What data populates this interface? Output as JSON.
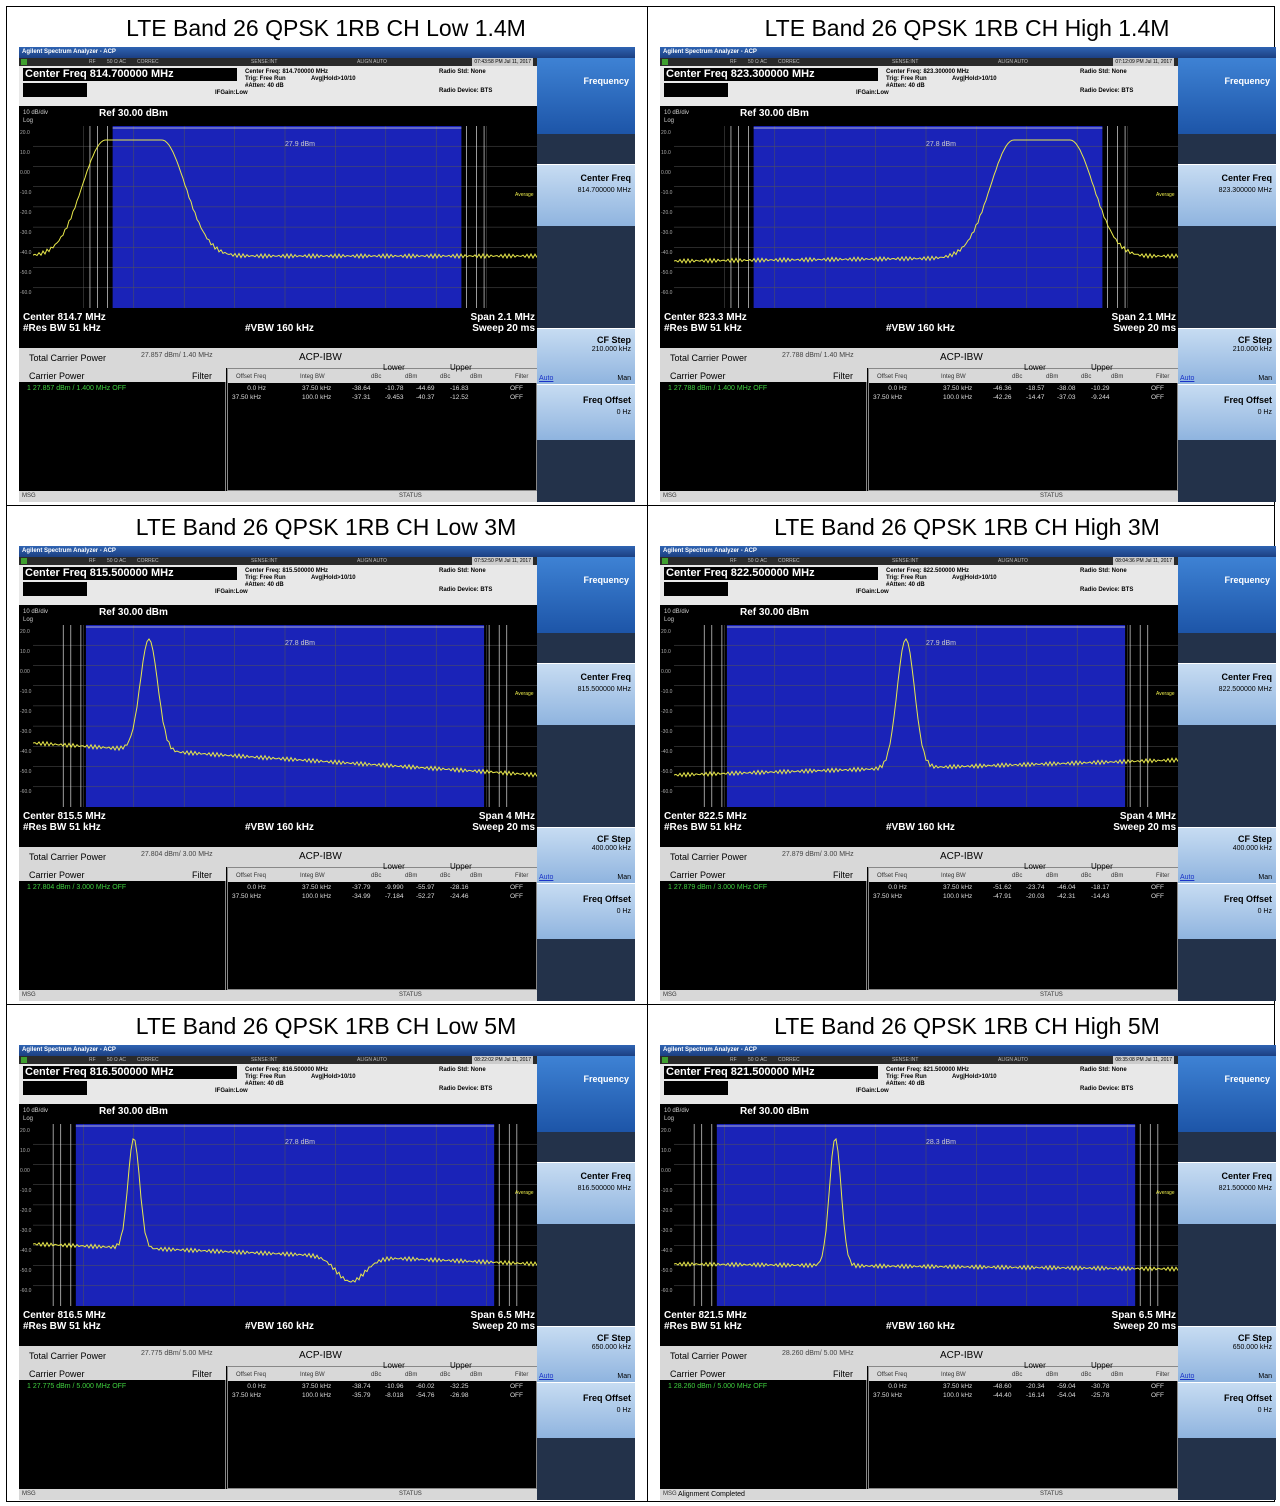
{
  "app_title": "Agilent Spectrum Analyzer - ACP",
  "status_items": [
    "RF",
    "50 Ω  AC",
    "CORREC",
    "SENSE:INT",
    "ALIGN AUTO"
  ],
  "ref_level": "Ref 30.00 dBm",
  "scale": "10 dB/div",
  "log_label": "Log",
  "y_ticks": [
    "20.0",
    "10.0",
    "0.00",
    "-10.0",
    "-20.0",
    "-30.0",
    "-40.0",
    "-50.0",
    "-60.0"
  ],
  "average_label": "Average",
  "header_labels": {
    "trig": "Trig: Free Run",
    "avg_hold": "Avg|Hold>10/10",
    "atten": "#Atten: 40 dB",
    "ifgain": "IFGain:Low",
    "radio_std": "Radio Std: None",
    "radio_device": "Radio Device: BTS"
  },
  "footer_labels": {
    "res_bw": "#Res BW  51 kHz",
    "vbw": "#VBW  160 kHz",
    "sweep": "Sweep  20 ms"
  },
  "results_labels": {
    "total_carrier_power": "Total Carrier Power",
    "mode": "ACP-IBW",
    "carrier_power": "Carrier Power",
    "filter": "Filter",
    "offset_freq": "Offset Freq",
    "integ_bw": "Integ BW",
    "lower": "Lower",
    "upper": "Upper",
    "dbc": "dBc",
    "dbm": "dBm",
    "filter_col": "Filter"
  },
  "bottom_bar": {
    "msg": "MSG",
    "status": "STATUS"
  },
  "softkeys": {
    "title": "Frequency",
    "center_freq": "Center Freq",
    "cf_step": "CF Step",
    "auto": "Auto",
    "man": "Man",
    "freq_offset": "Freq Offset",
    "freq_offset_value": "0 Hz"
  },
  "panels": [
    {
      "title": "LTE Band 26 QPSK 1RB CH Low 1.4M",
      "center_freq_box": "Center Freq 814.700000 MHz",
      "center_freq_header": "Center Freq: 814.700000 MHz",
      "timestamp": "07:43:58 PM Jul 11, 2017",
      "channel_power": "27.9 dBm",
      "center_label": "Center  814.7 MHz",
      "span_label": "Span 2.1 MHz",
      "total_carrier": "27.857 dBm/ 1.40 MHz",
      "carrier_row": "1    27.857 dBm /  1.400 MHz   OFF",
      "center_freq_softkey": "814.700000 MHz",
      "cf_step_value": "210.000 kHz",
      "offset_rows": [
        [
          "0.0 Hz",
          "37.50 kHz",
          "-38.64",
          "-10.78",
          "-44.69",
          "-16.83",
          "OFF"
        ],
        [
          "37.50 kHz",
          "100.0 kHz",
          "-37.31",
          "-9.453",
          "-40.37",
          "-12.52",
          "OFF"
        ]
      ],
      "alert": ""
    },
    {
      "title": "LTE Band 26 QPSK 1RB CH High 1.4M",
      "center_freq_box": "Center Freq 823.300000 MHz",
      "center_freq_header": "Center Freq: 823.300000 MHz",
      "timestamp": "07:12:09 PM Jul 11, 2017",
      "channel_power": "27.8 dBm",
      "center_label": "Center  823.3 MHz",
      "span_label": "Span 2.1 MHz",
      "total_carrier": "27.788 dBm/ 1.40 MHz",
      "carrier_row": "1    27.788 dBm /  1.400 MHz   OFF",
      "center_freq_softkey": "823.300000 MHz",
      "cf_step_value": "210.000 kHz",
      "offset_rows": [
        [
          "0.0 Hz",
          "37.50 kHz",
          "-46.36",
          "-18.57",
          "-38.08",
          "-10.29",
          "OFF"
        ],
        [
          "37.50 kHz",
          "100.0 kHz",
          "-42.26",
          "-14.47",
          "-37.03",
          "-9.244",
          "OFF"
        ]
      ],
      "alert": ""
    },
    {
      "title": "LTE Band 26 QPSK 1RB CH Low 3M",
      "center_freq_box": "Center Freq 815.500000 MHz",
      "center_freq_header": "Center Freq: 815.500000 MHz",
      "timestamp": "07:52:50 PM Jul 11, 2017",
      "channel_power": "27.8 dBm",
      "center_label": "Center  815.5 MHz",
      "span_label": "Span 4 MHz",
      "total_carrier": "27.804 dBm/ 3.00 MHz",
      "carrier_row": "1    27.804 dBm /  3.000 MHz   OFF",
      "center_freq_softkey": "815.500000 MHz",
      "cf_step_value": "400.000 kHz",
      "offset_rows": [
        [
          "0.0 Hz",
          "37.50 kHz",
          "-37.79",
          "-9.990",
          "-55.97",
          "-28.16",
          "OFF"
        ],
        [
          "37.50 kHz",
          "100.0 kHz",
          "-34.99",
          "-7.184",
          "-52.27",
          "-24.46",
          "OFF"
        ]
      ],
      "alert": ""
    },
    {
      "title": "LTE Band 26 QPSK 1RB CH High 3M",
      "center_freq_box": "Center Freq 822.500000 MHz",
      "center_freq_header": "Center Freq: 822.500000 MHz",
      "timestamp": "08:04:36 PM Jul 11, 2017",
      "channel_power": "27.9 dBm",
      "center_label": "Center  822.5 MHz",
      "span_label": "Span 4 MHz",
      "total_carrier": "27.879 dBm/ 3.00 MHz",
      "carrier_row": "1    27.879 dBm /  3.000 MHz   OFF",
      "center_freq_softkey": "822.500000 MHz",
      "cf_step_value": "400.000 kHz",
      "offset_rows": [
        [
          "0.0 Hz",
          "37.50 kHz",
          "-51.62",
          "-23.74",
          "-46.04",
          "-18.17",
          "OFF"
        ],
        [
          "37.50 kHz",
          "100.0 kHz",
          "-47.91",
          "-20.03",
          "-42.31",
          "-14.43",
          "OFF"
        ]
      ],
      "alert": ""
    },
    {
      "title": "LTE Band 26 QPSK 1RB CH Low 5M",
      "center_freq_box": "Center Freq 816.500000 MHz",
      "center_freq_header": "Center Freq: 816.500000 MHz",
      "timestamp": "08:22:02 PM Jul 11, 2017",
      "channel_power": "27.8 dBm",
      "center_label": "Center  816.5 MHz",
      "span_label": "Span 6.5 MHz",
      "total_carrier": "27.775 dBm/ 5.00 MHz",
      "carrier_row": "1    27.775 dBm /  5.000 MHz   OFF",
      "center_freq_softkey": "816.500000 MHz",
      "cf_step_value": "650.000 kHz",
      "offset_rows": [
        [
          "0.0 Hz",
          "37.50 kHz",
          "-38.74",
          "-10.96",
          "-60.02",
          "-32.25",
          "OFF"
        ],
        [
          "37.50 kHz",
          "100.0 kHz",
          "-35.79",
          "-8.018",
          "-54.76",
          "-26.98",
          "OFF"
        ]
      ],
      "alert": ""
    },
    {
      "title": "LTE Band 26 QPSK 1RB CH High 5M",
      "center_freq_box": "Center Freq 821.500000 MHz",
      "center_freq_header": "Center Freq: 821.500000 MHz",
      "timestamp": "08:35:08 PM Jul 11, 2017",
      "channel_power": "28.3 dBm",
      "center_label": "Center  821.5 MHz",
      "span_label": "Span 6.5 MHz",
      "total_carrier": "28.260 dBm/ 5.00 MHz",
      "carrier_row": "1    28.260 dBm /  5.000 MHz   OFF",
      "center_freq_softkey": "821.500000 MHz",
      "cf_step_value": "650.000 kHz",
      "offset_rows": [
        [
          "0.0 Hz",
          "37.50 kHz",
          "-48.60",
          "-20.34",
          "-59.04",
          "-30.78",
          "OFF"
        ],
        [
          "37.50 kHz",
          "100.0 kHz",
          "-44.40",
          "-16.14",
          "-54.04",
          "-25.78",
          "OFF"
        ]
      ],
      "alert": "Alignment Completed"
    }
  ],
  "colors": {
    "plot_bg": "#1a23b8",
    "trace": "#e8e84a",
    "softkey_blue": "#3e82d4",
    "carrier_green": "#3fcf3f"
  }
}
